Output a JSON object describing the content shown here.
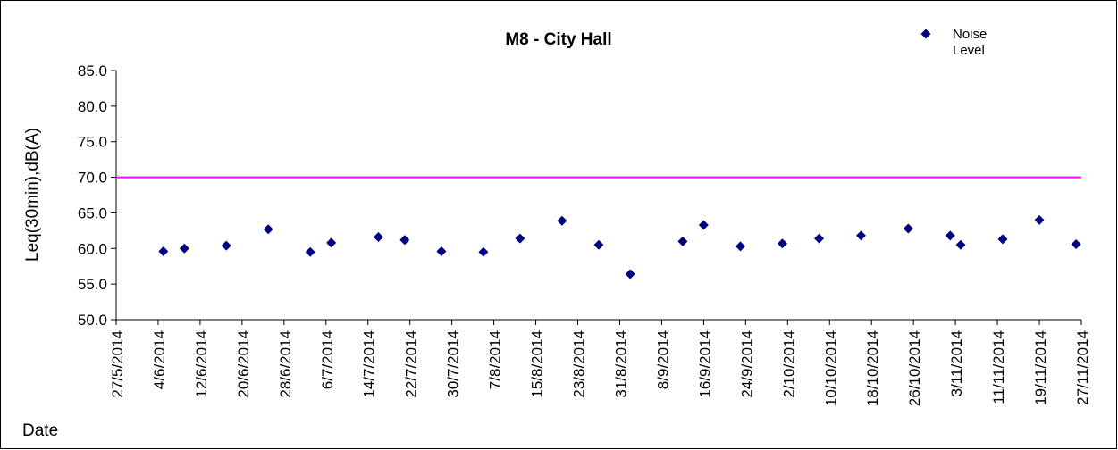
{
  "chart_data": {
    "type": "scatter",
    "title": "M8 - City Hall",
    "x_label": "Date",
    "y_label": "Leq(30min),dB(A)",
    "series": [
      {
        "name": "Noise Level",
        "color": "#000080",
        "x": [
          "2014-06-05",
          "2014-06-09",
          "2014-06-17",
          "2014-06-25",
          "2014-07-03",
          "2014-07-07",
          "2014-07-16",
          "2014-07-21",
          "2014-07-28",
          "2014-08-05",
          "2014-08-12",
          "2014-08-20",
          "2014-08-27",
          "2014-09-02",
          "2014-09-12",
          "2014-09-16",
          "2014-09-23",
          "2014-10-01",
          "2014-10-08",
          "2014-10-16",
          "2014-10-25",
          "2014-11-02",
          "2014-11-04",
          "2014-11-12",
          "2014-11-19",
          "2014-11-26"
        ],
        "values": [
          59.6,
          60.0,
          60.4,
          62.7,
          59.5,
          60.8,
          61.6,
          61.2,
          59.6,
          59.5,
          61.4,
          63.9,
          60.5,
          56.4,
          61.0,
          63.3,
          60.3,
          60.7,
          61.4,
          61.8,
          62.8,
          61.8,
          60.5,
          61.3,
          64.0,
          60.6
        ]
      }
    ],
    "limit_line": {
      "value": 70,
      "color": "#ff00ff"
    },
    "xlim": [
      "2014-05-27",
      "2014-11-27"
    ],
    "xticks": [
      {
        "value": "2014-05-27",
        "label": "27/5/2014"
      },
      {
        "value": "2014-06-04",
        "label": "4/6/2014"
      },
      {
        "value": "2014-06-12",
        "label": "12/6/2014"
      },
      {
        "value": "2014-06-20",
        "label": "20/6/2014"
      },
      {
        "value": "2014-06-28",
        "label": "28/6/2014"
      },
      {
        "value": "2014-07-06",
        "label": "6/7/2014"
      },
      {
        "value": "2014-07-14",
        "label": "14/7/2014"
      },
      {
        "value": "2014-07-22",
        "label": "22/7/2014"
      },
      {
        "value": "2014-07-30",
        "label": "30/7/2014"
      },
      {
        "value": "2014-08-07",
        "label": "7/8/2014"
      },
      {
        "value": "2014-08-15",
        "label": "15/8/2014"
      },
      {
        "value": "2014-08-23",
        "label": "23/8/2014"
      },
      {
        "value": "2014-08-31",
        "label": "31/8/2014"
      },
      {
        "value": "2014-09-08",
        "label": "8/9/2014"
      },
      {
        "value": "2014-09-16",
        "label": "16/9/2014"
      },
      {
        "value": "2014-09-24",
        "label": "24/9/2014"
      },
      {
        "value": "2014-10-02",
        "label": "2/10/2014"
      },
      {
        "value": "2014-10-10",
        "label": "10/10/2014"
      },
      {
        "value": "2014-10-18",
        "label": "18/10/2014"
      },
      {
        "value": "2014-10-26",
        "label": "26/10/2014"
      },
      {
        "value": "2014-11-03",
        "label": "3/11/2014"
      },
      {
        "value": "2014-11-11",
        "label": "11/11/2014"
      },
      {
        "value": "2014-11-19",
        "label": "19/11/2014"
      },
      {
        "value": "2014-11-27",
        "label": "27/11/2014"
      }
    ],
    "ylim": [
      50,
      85
    ],
    "yticks": [
      {
        "value": 50,
        "label": "50.0"
      },
      {
        "value": 55,
        "label": "55.0"
      },
      {
        "value": 60,
        "label": "60.0"
      },
      {
        "value": 65,
        "label": "65.0"
      },
      {
        "value": 70,
        "label": "70.0"
      },
      {
        "value": 75,
        "label": "75.0"
      },
      {
        "value": 80,
        "label": "80.0"
      },
      {
        "value": 85,
        "label": "85.0"
      }
    ],
    "grid": false,
    "legend": "top-right"
  }
}
